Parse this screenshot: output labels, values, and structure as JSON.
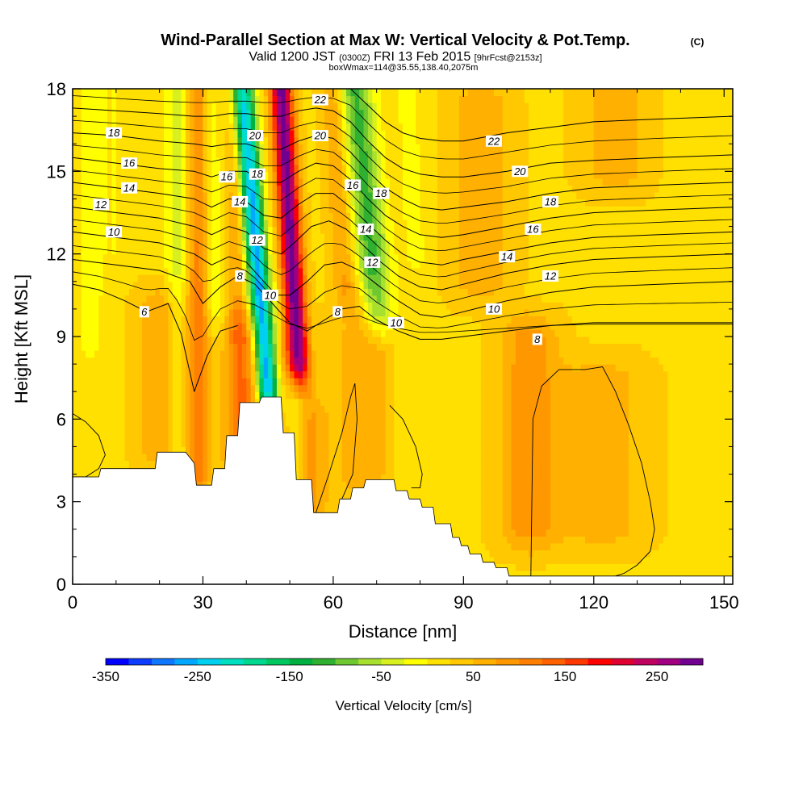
{
  "header": {
    "title": "Wind-Parallel Section at Max W: Vertical Velocity & Pot.Temp.",
    "copyright": "(C)",
    "valid_prefix": "Valid 1200 JST",
    "valid_utc": "(0300Z)",
    "valid_date": "FRI 13 Feb 2015",
    "forecast": "[9hrFcst@2153z]",
    "box_info": "boxWmax=114@35.55,138.40,2075m"
  },
  "chart_data": {
    "type": "heatmap",
    "xlabel": "Distance [nm]",
    "ylabel": "Height [Kft MSL]",
    "xlim": [
      0,
      152
    ],
    "ylim": [
      0,
      18
    ],
    "x_ticks": [
      0,
      30,
      60,
      90,
      120,
      150
    ],
    "x_tick_labels": [
      "0",
      "30",
      "60",
      "90",
      "120",
      "150"
    ],
    "y_ticks": [
      0,
      3,
      6,
      9,
      12,
      15,
      18
    ],
    "y_tick_labels": [
      "0",
      "3",
      "6",
      "9",
      "12",
      "15",
      "18"
    ],
    "x_gridlines": false,
    "y_gridlines": false,
    "colorbar": {
      "label": "Vertical Velocity [cm/s]",
      "min": -350,
      "max": 300,
      "step": 25,
      "tick_values": [
        -350,
        -250,
        -150,
        -50,
        50,
        150,
        250
      ],
      "tick_labels": [
        "-350",
        "-250",
        "-150",
        "-50",
        "50",
        "150",
        "250"
      ],
      "colors": [
        "#0000ff",
        "#0c3cff",
        "#0f76ff",
        "#00a8ff",
        "#00d0f0",
        "#00e0c0",
        "#00d890",
        "#00c860",
        "#00b040",
        "#30b030",
        "#70c830",
        "#a8e030",
        "#d8f020",
        "#ffff00",
        "#ffe000",
        "#ffc800",
        "#ffb000",
        "#ff9800",
        "#ff8000",
        "#ff6000",
        "#ff3800",
        "#ff0000",
        "#e00030",
        "#c00060",
        "#a00080",
        "#700090"
      ]
    },
    "velocity_field": {
      "background": 20,
      "features": [
        {
          "x": 4,
          "y_top": 18,
          "y_bottom": 9,
          "slant": 0,
          "width": 3,
          "w": -40
        },
        {
          "x": 10,
          "y_top": 18,
          "y_bottom": 12,
          "slant": 0,
          "width": 3,
          "w": -20
        },
        {
          "x": 21,
          "y_top": 10,
          "y_bottom": 5,
          "slant": 0,
          "width": 6,
          "w": 60
        },
        {
          "x": 24,
          "y_top": 18,
          "y_bottom": 4,
          "slant": 0,
          "width": 2.5,
          "w": -60
        },
        {
          "x": 29,
          "y_top": 18,
          "y_bottom": 4,
          "slant": 0,
          "width": 2.5,
          "w": 90
        },
        {
          "x": 33,
          "y_top": 18,
          "y_bottom": 10,
          "slant": -2,
          "width": 2.5,
          "w": -45
        },
        {
          "x": 38,
          "y_top": 18,
          "y_bottom": 10,
          "slant": 0,
          "width": 2.5,
          "w": 60
        },
        {
          "x": 39,
          "y_top": 9,
          "y_bottom": 4.5,
          "slant": 0,
          "width": 4,
          "w": 110
        },
        {
          "x": 45,
          "y_top": 18,
          "y_bottom": 7,
          "slant": -6,
          "width": 2.5,
          "w": -290
        },
        {
          "x": 52,
          "y_top": 18,
          "y_bottom": 8,
          "slant": -4,
          "width": 2.5,
          "w": 270
        },
        {
          "x": 48,
          "y_top": 8,
          "y_bottom": 3.5,
          "slant": 0,
          "width": 2,
          "w": 40
        },
        {
          "x": 51,
          "y_top": 7,
          "y_bottom": 3.5,
          "slant": 0,
          "width": 2,
          "w": -40
        },
        {
          "x": 55,
          "y_top": 6,
          "y_bottom": 2.8,
          "slant": 0,
          "width": 4,
          "w": 60
        },
        {
          "x": 63,
          "y_top": 18,
          "y_bottom": 11,
          "slant": -3,
          "width": 3,
          "w": 60
        },
        {
          "x": 70,
          "y_top": 18,
          "y_bottom": 10,
          "slant": -5,
          "width": 4,
          "w": -130
        },
        {
          "x": 79,
          "y_top": 18,
          "y_bottom": 12,
          "slant": -2,
          "width": 3,
          "w": -30
        },
        {
          "x": 67,
          "y_top": 10,
          "y_bottom": 4,
          "slant": 0,
          "width": 6,
          "w": 55
        },
        {
          "x": 77,
          "y_top": 8,
          "y_bottom": 3.5,
          "slant": 0,
          "width": 3,
          "w": -20
        },
        {
          "x": 94,
          "y_top": 17.5,
          "y_bottom": 11,
          "slant": 0,
          "width": 7,
          "w": 50
        },
        {
          "x": 105,
          "y_top": 9,
          "y_bottom": 2,
          "slant": 0,
          "width": 7,
          "w": 70
        },
        {
          "x": 122,
          "y_top": 7.5,
          "y_bottom": 2,
          "slant": 0,
          "width": 10,
          "w": 45
        },
        {
          "x": 125,
          "y_top": 18,
          "y_bottom": 15,
          "slant": 0,
          "width": 8,
          "w": 45
        },
        {
          "x": 140,
          "y_top": 18,
          "y_bottom": 12,
          "slant": 0,
          "width": 4,
          "w": -5
        }
      ]
    },
    "terrain_kft": {
      "x": [
        0,
        6,
        6.5,
        13,
        19,
        19.5,
        26,
        28,
        28.5,
        32,
        32.5,
        35,
        35.5,
        38,
        38.5,
        43,
        43.5,
        48,
        48.5,
        51,
        51.5,
        55,
        55.5,
        61,
        61.5,
        64,
        64.5,
        67,
        67.5,
        74,
        74.5,
        77,
        77.5,
        80,
        80.5,
        83,
        83.5,
        87,
        87.5,
        89,
        89.5,
        91,
        91.5,
        94,
        94.5,
        97,
        97.5,
        100,
        100.5,
        103,
        103.5,
        152
      ],
      "height": [
        3.9,
        3.9,
        4.2,
        4.2,
        4.2,
        4.8,
        4.8,
        4.4,
        3.6,
        3.6,
        4.2,
        4.2,
        5.4,
        5.4,
        6.6,
        6.6,
        6.8,
        6.8,
        5.5,
        5.5,
        3.8,
        3.8,
        2.6,
        2.6,
        3.1,
        3.1,
        3.5,
        3.5,
        3.8,
        3.8,
        3.4,
        3.4,
        3.1,
        3.1,
        2.8,
        2.8,
        2.2,
        2.2,
        1.7,
        1.7,
        1.4,
        1.4,
        1.1,
        1.1,
        0.8,
        0.8,
        0.6,
        0.6,
        0.3,
        0.3,
        0.3,
        0.3
      ]
    },
    "theta_contours": [
      {
        "level": "6",
        "x": [
          0,
          6,
          12,
          17,
          22,
          25,
          28,
          31,
          34,
          38
        ],
        "y": [
          10.9,
          10.7,
          10.3,
          9.9,
          10.2,
          9.1,
          7.0,
          8.3,
          9.2,
          9.4
        ]
      },
      {
        "level": "8",
        "x": [
          0,
          10,
          20,
          27,
          30,
          34,
          38,
          42,
          46,
          50,
          54,
          58,
          62,
          66,
          70,
          75,
          80,
          85,
          90,
          100,
          110,
          120,
          135,
          152
        ],
        "y": [
          11.8,
          11.6,
          11.4,
          11.0,
          10.2,
          10.8,
          11.2,
          10.9,
          10.2,
          9.5,
          9.2,
          9.6,
          10.0,
          10.1,
          9.6,
          9.2,
          8.9,
          8.9,
          9.0,
          9.2,
          9.4,
          9.5,
          9.5,
          9.5
        ]
      },
      {
        "level": "10",
        "x": [
          0,
          10,
          20,
          28,
          32,
          36,
          40,
          44,
          47,
          50,
          54,
          58,
          62,
          66,
          70,
          75,
          80,
          85,
          90,
          100,
          110,
          120,
          135,
          152
        ],
        "y": [
          12.8,
          12.6,
          12.4,
          12.0,
          11.6,
          11.9,
          11.7,
          11.0,
          10.5,
          10.5,
          11.0,
          11.6,
          11.7,
          11.4,
          10.9,
          10.3,
          9.8,
          9.7,
          9.9,
          10.3,
          10.6,
          10.8,
          10.9,
          11.0
        ]
      },
      {
        "level": "12",
        "x": [
          0,
          10,
          20,
          28,
          32,
          36,
          40,
          44,
          48,
          51,
          55,
          59,
          63,
          67,
          71,
          75,
          80,
          85,
          90,
          100,
          110,
          120,
          135,
          152
        ],
        "y": [
          13.7,
          13.5,
          13.3,
          13.0,
          12.7,
          13.0,
          12.8,
          12.2,
          12.0,
          12.4,
          13.0,
          13.2,
          12.9,
          12.3,
          11.7,
          11.2,
          10.8,
          10.7,
          10.9,
          11.3,
          11.6,
          11.8,
          11.9,
          12.0
        ]
      },
      {
        "level": "14",
        "x": [
          0,
          10,
          20,
          28,
          32,
          36,
          40,
          44,
          48,
          52,
          56,
          60,
          64,
          68,
          72,
          76,
          80,
          85,
          90,
          100,
          110,
          120,
          135,
          152
        ],
        "y": [
          14.6,
          14.4,
          14.2,
          14.0,
          13.7,
          14.0,
          13.9,
          13.4,
          13.3,
          13.8,
          14.2,
          14.2,
          13.7,
          13.1,
          12.5,
          12.0,
          11.7,
          11.6,
          11.8,
          12.1,
          12.4,
          12.6,
          12.7,
          12.8
        ]
      },
      {
        "level": "16",
        "x": [
          0,
          10,
          20,
          28,
          32,
          36,
          40,
          44,
          48,
          52,
          56,
          60,
          64,
          68,
          72,
          76,
          80,
          85,
          90,
          100,
          110,
          120,
          135,
          152
        ],
        "y": [
          15.5,
          15.3,
          15.1,
          15.0,
          14.8,
          15.0,
          15.0,
          14.6,
          14.6,
          15.0,
          15.3,
          15.2,
          14.7,
          14.0,
          13.4,
          13.0,
          12.7,
          12.6,
          12.7,
          13.0,
          13.3,
          13.5,
          13.6,
          13.7
        ]
      },
      {
        "level": "18",
        "x": [
          0,
          10,
          20,
          28,
          32,
          36,
          40,
          44,
          48,
          52,
          56,
          60,
          64,
          68,
          72,
          76,
          80,
          85,
          90,
          100,
          110,
          120,
          135,
          152
        ],
        "y": [
          16.4,
          16.3,
          16.1,
          16.0,
          15.9,
          16.0,
          16.0,
          15.8,
          15.8,
          16.1,
          16.3,
          16.2,
          15.7,
          15.0,
          14.4,
          14.0,
          13.7,
          13.6,
          13.7,
          13.9,
          14.2,
          14.4,
          14.5,
          14.6
        ]
      },
      {
        "level": "20",
        "x": [
          0,
          10,
          20,
          28,
          32,
          36,
          40,
          44,
          48,
          52,
          56,
          60,
          64,
          68,
          72,
          76,
          80,
          85,
          90,
          100,
          110,
          120,
          135,
          152
        ],
        "y": [
          17.3,
          17.2,
          17.1,
          17.0,
          17.0,
          17.1,
          17.1,
          17.0,
          17.0,
          17.2,
          17.3,
          17.2,
          16.8,
          16.1,
          15.5,
          15.1,
          14.9,
          14.8,
          14.8,
          15.0,
          15.3,
          15.4,
          15.5,
          15.6
        ]
      },
      {
        "level": "22",
        "x": [
          0,
          10,
          20,
          30,
          40,
          50,
          56,
          60,
          64,
          68,
          72,
          76,
          80,
          85,
          90,
          100,
          110,
          120,
          135,
          152
        ],
        "y": [
          18.2,
          18.1,
          18.0,
          18.0,
          18.0,
          18.0,
          18.1,
          18.1,
          18.0,
          17.4,
          16.8,
          16.4,
          16.2,
          16.1,
          16.1,
          16.4,
          16.6,
          16.8,
          16.9,
          17.0
        ]
      }
    ],
    "contour_labels": [
      {
        "text": "18",
        "x": 9.5,
        "y": 16.4
      },
      {
        "text": "16",
        "x": 13,
        "y": 15.3
      },
      {
        "text": "14",
        "x": 13,
        "y": 14.4
      },
      {
        "text": "12",
        "x": 6.5,
        "y": 13.8
      },
      {
        "text": "10",
        "x": 9.5,
        "y": 12.8
      },
      {
        "text": "6",
        "x": 16.5,
        "y": 9.9
      },
      {
        "text": "16",
        "x": 35.5,
        "y": 14.8
      },
      {
        "text": "14",
        "x": 38.5,
        "y": 13.9
      },
      {
        "text": "8",
        "x": 38.5,
        "y": 11.2
      },
      {
        "text": "20",
        "x": 42,
        "y": 16.3
      },
      {
        "text": "18",
        "x": 42.5,
        "y": 14.9
      },
      {
        "text": "12",
        "x": 42.5,
        "y": 12.5
      },
      {
        "text": "10",
        "x": 45.5,
        "y": 10.5
      },
      {
        "text": "22",
        "x": 57,
        "y": 17.6
      },
      {
        "text": "20",
        "x": 57,
        "y": 16.3
      },
      {
        "text": "16",
        "x": 64.5,
        "y": 14.5
      },
      {
        "text": "18",
        "x": 71,
        "y": 14.2
      },
      {
        "text": "8",
        "x": 61,
        "y": 9.9
      },
      {
        "text": "14",
        "x": 67.5,
        "y": 12.9
      },
      {
        "text": "12",
        "x": 69,
        "y": 11.7
      },
      {
        "text": "10",
        "x": 74.5,
        "y": 9.5
      },
      {
        "text": "22",
        "x": 97,
        "y": 16.1
      },
      {
        "text": "20",
        "x": 103,
        "y": 15.0
      },
      {
        "text": "18",
        "x": 110,
        "y": 13.9
      },
      {
        "text": "16",
        "x": 106,
        "y": 12.9
      },
      {
        "text": "14",
        "x": 100,
        "y": 11.9
      },
      {
        "text": "12",
        "x": 110,
        "y": 11.2
      },
      {
        "text": "10",
        "x": 97,
        "y": 10.0
      },
      {
        "text": "8",
        "x": 107,
        "y": 8.9
      }
    ],
    "w_zero_contours": [
      {
        "x": [
          0,
          3,
          6,
          7.5,
          6,
          3,
          0
        ],
        "y": [
          6.2,
          5.9,
          5.4,
          4.7,
          4.2,
          3.9,
          3.9
        ]
      },
      {
        "x": [
          56,
          59,
          62,
          64,
          65,
          65.5,
          64.5,
          62
        ],
        "y": [
          2.6,
          4.0,
          5.5,
          6.8,
          7.3,
          6.0,
          4.0,
          3.1
        ]
      },
      {
        "x": [
          73,
          76,
          79,
          80.5,
          80,
          78
        ],
        "y": [
          6.5,
          6.0,
          5.0,
          4.0,
          3.5,
          3.5
        ]
      },
      {
        "x": [
          105.5,
          106,
          108,
          112,
          118,
          122,
          125,
          128,
          131,
          133,
          134,
          133,
          130,
          127,
          125
        ],
        "y": [
          0.3,
          6.0,
          7.2,
          7.8,
          7.8,
          7.9,
          7.0,
          5.8,
          4.4,
          3.0,
          2.0,
          1.2,
          0.7,
          0.4,
          0.3
        ]
      }
    ]
  }
}
